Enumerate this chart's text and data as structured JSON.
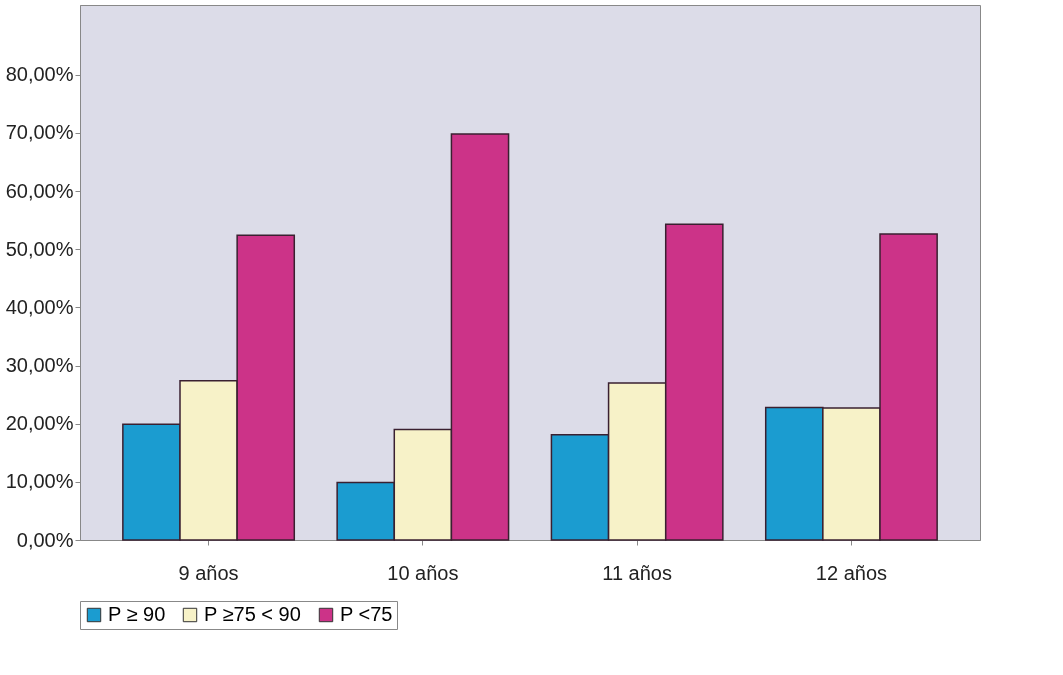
{
  "chart_data": {
    "type": "bar",
    "categories": [
      "9 años",
      "10 años",
      "11 años",
      "12 años"
    ],
    "series": [
      {
        "name": "P ≥ 90",
        "color": "#1b9cd0",
        "values": [
          19.9,
          9.9,
          18.1,
          22.8
        ]
      },
      {
        "name": "P ≥75 < 90",
        "color": "#f7f2c8",
        "values": [
          27.4,
          19.0,
          27.0,
          22.7
        ]
      },
      {
        "name": "P <75",
        "color": "#cc3388",
        "values": [
          52.4,
          69.8,
          54.3,
          52.6
        ]
      }
    ],
    "ylim": [
      0,
      92
    ],
    "yticks": [
      {
        "value": 0,
        "label": "0,00%"
      },
      {
        "value": 10,
        "label": "10,00%"
      },
      {
        "value": 20,
        "label": "20,00%"
      },
      {
        "value": 30,
        "label": "30,00%"
      },
      {
        "value": 40,
        "label": "40,00%"
      },
      {
        "value": 50,
        "label": "50,00%"
      },
      {
        "value": 60,
        "label": "60,00%"
      },
      {
        "value": 70,
        "label": "70,00%"
      },
      {
        "value": 80,
        "label": "80,00%"
      }
    ],
    "grid": false,
    "legend": "bottom"
  }
}
